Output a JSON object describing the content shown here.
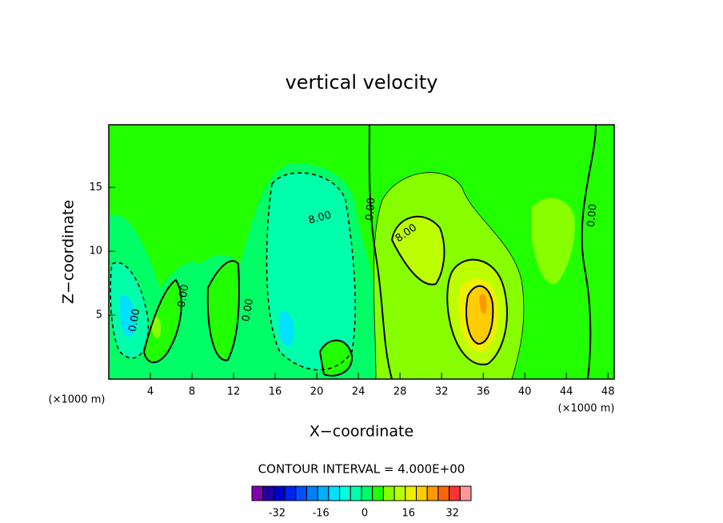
{
  "chart_data": {
    "type": "contour",
    "title": "vertical velocity",
    "x_label": "X−coordinate",
    "y_label": "Z−coordinate",
    "x_unit_labels": [
      "(×1000 m)",
      "(×1000 m)"
    ],
    "xlim": [
      0,
      48.6
    ],
    "xticks": [
      4,
      8,
      12,
      16,
      20,
      24,
      28,
      32,
      36,
      40,
      44,
      48
    ],
    "ylim": [
      0,
      19.9
    ],
    "yticks": [
      5,
      10,
      15
    ],
    "contour_note": "CONTOUR INTERVAL = 4.000E+00",
    "contour_labels": [
      {
        "text": "0.00",
        "x": 2.5,
        "y": 4.6
      },
      {
        "text": "0.00",
        "x": 7.2,
        "y": 6.5
      },
      {
        "text": "0.00",
        "x": 13.4,
        "y": 5.4
      },
      {
        "text": "8.00",
        "x": 20.3,
        "y": 12.6
      },
      {
        "text": "0.00",
        "x": 25.2,
        "y": 13.3
      },
      {
        "text": "8.00",
        "x": 28.6,
        "y": 11.4
      },
      {
        "text": "0.00",
        "x": 46.5,
        "y": 12.8
      }
    ],
    "colorbar": {
      "lim": [
        -40,
        40
      ],
      "colors": [
        "#8000b0",
        "#2000a0",
        "#0000cc",
        "#0022ee",
        "#0050ff",
        "#0080ff",
        "#00b0ff",
        "#00e0ff",
        "#00ffe0",
        "#00ffaa",
        "#00ff66",
        "#22ff00",
        "#88ff00",
        "#bbff00",
        "#eeee00",
        "#ffcc00",
        "#ff9900",
        "#ff6600",
        "#ff3333",
        "#ff9999"
      ],
      "ticks": [
        -32,
        -16,
        0,
        16,
        32
      ]
    }
  }
}
